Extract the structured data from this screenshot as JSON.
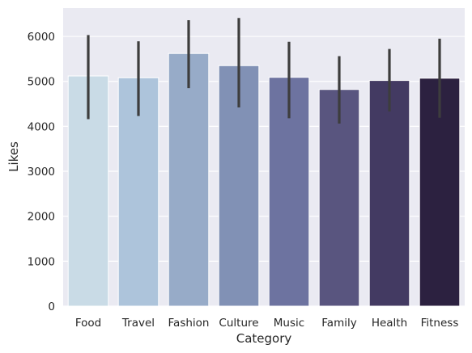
{
  "chart_data": {
    "type": "bar",
    "title": "",
    "xlabel": "Category",
    "ylabel": "Likes",
    "categories": [
      "Food",
      "Travel",
      "Fashion",
      "Culture",
      "Music",
      "Family",
      "Health",
      "Fitness"
    ],
    "values": [
      5120,
      5080,
      5620,
      5350,
      5090,
      4820,
      5020,
      5070
    ],
    "error_bars": [
      [
        4160,
        6030
      ],
      [
        4230,
        5890
      ],
      [
        4850,
        6360
      ],
      [
        4420,
        6410
      ],
      [
        4180,
        5880
      ],
      [
        4060,
        5560
      ],
      [
        4330,
        5720
      ],
      [
        4190,
        5950
      ]
    ],
    "bar_colors": [
      "#c9dbe6",
      "#adc4db",
      "#97abc8",
      "#8191b5",
      "#6d73a0",
      "#59557f",
      "#433a62",
      "#2c2140"
    ],
    "ylim": [
      0,
      6630
    ],
    "yticks": [
      0,
      1000,
      2000,
      3000,
      4000,
      5000,
      6000
    ],
    "grid": true,
    "background": "#eaeaf2",
    "errorbar_color": "#3d3d3d"
  }
}
